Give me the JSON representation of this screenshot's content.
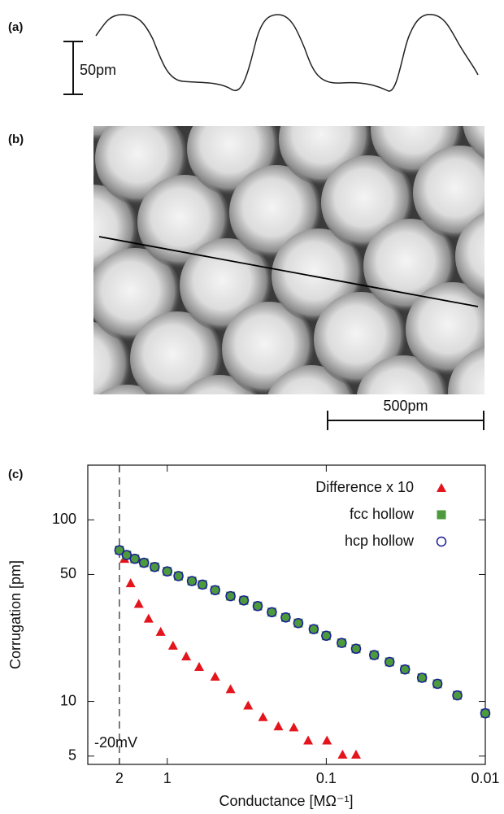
{
  "panels": {
    "a": {
      "label": "(a)",
      "scale_bar": "50pm"
    },
    "b": {
      "label": "(b)",
      "scale_bar": "500pm"
    },
    "c": {
      "label": "(c)"
    }
  },
  "chart_data": {
    "type": "scatter",
    "x_label": "Conductance [MΩ⁻¹]",
    "y_label": "Corrugation [pm]",
    "xlim": [
      3.16,
      0.01
    ],
    "ylim": [
      4.5,
      200
    ],
    "xscale": "log",
    "yscale": "log",
    "xticks": [
      2,
      1,
      0.1,
      0.01
    ],
    "yticks": [
      5,
      10,
      50,
      100
    ],
    "vline": 2,
    "vline_label": "-20mV",
    "legend": "upper right",
    "series": [
      {
        "name": "Difference x 10",
        "color": "#e3141c",
        "marker": "triangle",
        "x": [
          1.86,
          1.7,
          1.51,
          1.31,
          1.1,
          0.92,
          0.76,
          0.63,
          0.5,
          0.4,
          0.31,
          0.25,
          0.2,
          0.16,
          0.13,
          0.099,
          0.079,
          0.065
        ],
        "values": [
          61,
          44.8,
          34.5,
          28.6,
          24.2,
          20.3,
          17.7,
          15.5,
          13.7,
          11.7,
          9.5,
          8.2,
          7.3,
          7.2,
          6.1,
          6.1,
          5.1,
          5.1
        ]
      },
      {
        "name": "fcc hollow",
        "color": "#4c9a3c",
        "marker": "square",
        "x": [
          2,
          1.8,
          1.6,
          1.4,
          1.2,
          1.0,
          0.85,
          0.7,
          0.6,
          0.5,
          0.4,
          0.33,
          0.27,
          0.22,
          0.18,
          0.15,
          0.12,
          0.1,
          0.08,
          0.065,
          0.05,
          0.04,
          0.032,
          0.025,
          0.02,
          0.015,
          0.01
        ],
        "values": [
          68,
          64,
          61,
          58,
          55,
          52,
          49,
          46,
          44,
          41,
          38,
          36,
          33.5,
          31,
          29,
          27,
          25,
          23,
          21,
          19.5,
          18,
          16.5,
          15,
          13.5,
          12.5,
          10.8,
          8.6
        ]
      },
      {
        "name": "hcp hollow",
        "color": "#1c1c9c",
        "marker": "open-circle",
        "x": [
          2,
          1.8,
          1.6,
          1.4,
          1.2,
          1.0,
          0.85,
          0.7,
          0.6,
          0.5,
          0.4,
          0.33,
          0.27,
          0.22,
          0.18,
          0.15,
          0.12,
          0.1,
          0.08,
          0.065,
          0.05,
          0.04,
          0.032,
          0.025,
          0.02,
          0.015,
          0.01
        ],
        "values": [
          68,
          64,
          61,
          58,
          55,
          52,
          49,
          46,
          44,
          41,
          38,
          36,
          33.5,
          31,
          29,
          27,
          25,
          23,
          21,
          19.5,
          18,
          16.5,
          15,
          13.5,
          12.5,
          10.8,
          8.6
        ]
      }
    ]
  }
}
